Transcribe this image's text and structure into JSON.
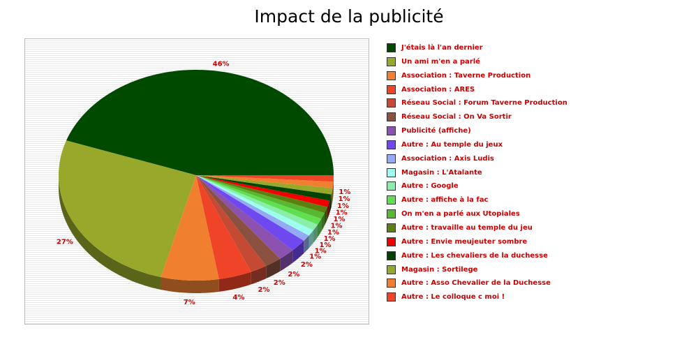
{
  "chart_data": {
    "type": "pie",
    "title": "Impact de la publicité",
    "legend_position": "right",
    "slices": [
      {
        "label": "J'étais là l'an dernier",
        "value": 46,
        "display": "46%",
        "color": "#004a00"
      },
      {
        "label": "Un ami m'en a parlé",
        "value": 27,
        "display": "27%",
        "color": "#98a82a"
      },
      {
        "label": "Association : Taverne Production",
        "value": 7,
        "display": "7%",
        "color": "#f08030"
      },
      {
        "label": "Association : ARES",
        "value": 4,
        "display": "4%",
        "color": "#f04428"
      },
      {
        "label": "Réseau Social : Forum Taverne Production",
        "value": 2,
        "display": "2%",
        "color": "#c44a34"
      },
      {
        "label": "Réseau Social : On Va Sortir",
        "value": 2,
        "display": "2%",
        "color": "#8a5040"
      },
      {
        "label": "Publicité (affiche)",
        "value": 2,
        "display": "2%",
        "color": "#8c52b0"
      },
      {
        "label": "Autre : Au temple du jeux",
        "value": 2,
        "display": "2%",
        "color": "#7048f0"
      },
      {
        "label": "Association : Axis Ludis",
        "value": 1,
        "display": "1%",
        "color": "#94aaf4"
      },
      {
        "label": "Magasin : L'Atalante",
        "value": 1,
        "display": "1%",
        "color": "#9effee"
      },
      {
        "label": "Autre : Google",
        "value": 1,
        "display": "1%",
        "color": "#88eeaa"
      },
      {
        "label": "Autre : affiche à la fac",
        "value": 1,
        "display": "1%",
        "color": "#60e050"
      },
      {
        "label": "On m'en a parlé aux Utopiales",
        "value": 1,
        "display": "1%",
        "color": "#58b830"
      },
      {
        "label": "Autre : travaille au temple du jeu",
        "value": 1,
        "display": "1%",
        "color": "#5c8010"
      },
      {
        "label": "Autre : Envie meujeuter sombre",
        "value": 1,
        "display": "1%",
        "color": "#f00000"
      },
      {
        "label": "Autre : Les chevaliers de la duchesse",
        "value": 1,
        "display": "1%",
        "color": "#004400"
      },
      {
        "label": "Magasin : Sortilege",
        "value": 1,
        "display": "1%",
        "color": "#98a82a"
      },
      {
        "label": "Autre : Asso Chevalier de la Duchesse",
        "value": 1,
        "display": "1%",
        "color": "#f08030"
      },
      {
        "label": "Autre : Le colloque c moi !",
        "value": 1,
        "display": "1%",
        "color": "#f04428"
      }
    ]
  }
}
